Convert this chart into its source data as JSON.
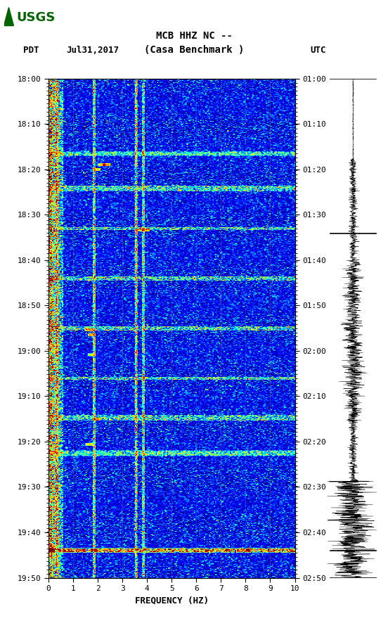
{
  "title_line1": "MCB HHZ NC --",
  "title_line2": "(Casa Benchmark )",
  "date_label": "Jul31,2017",
  "tz_left": "PDT",
  "tz_right": "UTC",
  "freq_label": "FREQUENCY (HZ)",
  "freq_min": 0,
  "freq_max": 10,
  "time_ticks_left": [
    "18:00",
    "18:10",
    "18:20",
    "18:30",
    "18:40",
    "18:50",
    "19:00",
    "19:10",
    "19:20",
    "19:30",
    "19:40",
    "19:50"
  ],
  "time_ticks_right": [
    "01:00",
    "01:10",
    "01:20",
    "01:30",
    "01:40",
    "01:50",
    "02:00",
    "02:10",
    "02:20",
    "02:30",
    "02:40",
    "02:50"
  ],
  "bg_color": "#ffffff",
  "n_freq": 200,
  "n_time": 720,
  "usgs_logo_color": "#006400",
  "seed": 42
}
